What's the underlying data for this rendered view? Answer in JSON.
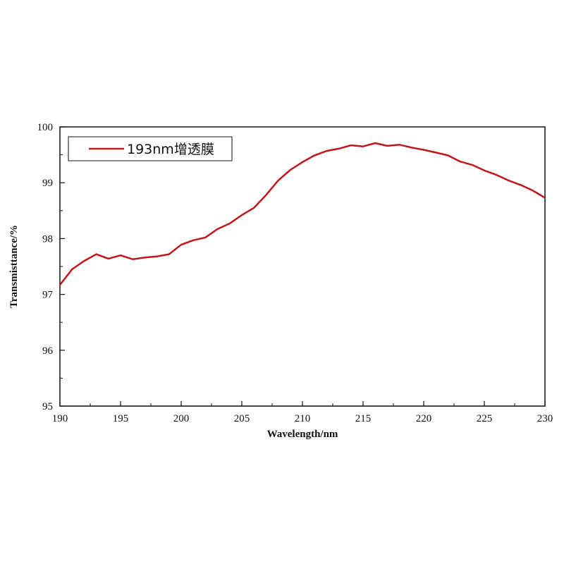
{
  "chart_data": {
    "type": "line",
    "xlabel": "Wavelength/nm",
    "ylabel": "Transmisttance/%",
    "xlim": [
      190,
      230
    ],
    "ylim": [
      95,
      100
    ],
    "xticks": [
      190,
      195,
      200,
      205,
      210,
      215,
      220,
      225,
      230
    ],
    "yticks": [
      95,
      96,
      97,
      98,
      99,
      100
    ],
    "legend_position": "top-left",
    "grid": false,
    "series": [
      {
        "name": "193nm增透膜",
        "color": "#c0161c",
        "x": [
          190,
          191,
          192,
          193,
          194,
          195,
          196,
          197,
          198,
          199,
          200,
          201,
          202,
          203,
          204,
          205,
          206,
          207,
          208,
          209,
          210,
          211,
          212,
          213,
          214,
          215,
          216,
          217,
          218,
          219,
          220,
          221,
          222,
          223,
          224,
          225,
          226,
          227,
          228,
          229,
          230
        ],
        "y": [
          97.17,
          97.45,
          97.6,
          97.72,
          97.64,
          97.7,
          97.63,
          97.66,
          97.68,
          97.72,
          97.89,
          97.97,
          98.02,
          98.17,
          98.27,
          98.42,
          98.55,
          98.78,
          99.04,
          99.23,
          99.37,
          99.49,
          99.57,
          99.61,
          99.67,
          99.65,
          99.71,
          99.66,
          99.68,
          99.63,
          99.59,
          99.54,
          99.49,
          99.38,
          99.32,
          99.22,
          99.14,
          99.04,
          98.96,
          98.86,
          98.73
        ]
      }
    ]
  }
}
